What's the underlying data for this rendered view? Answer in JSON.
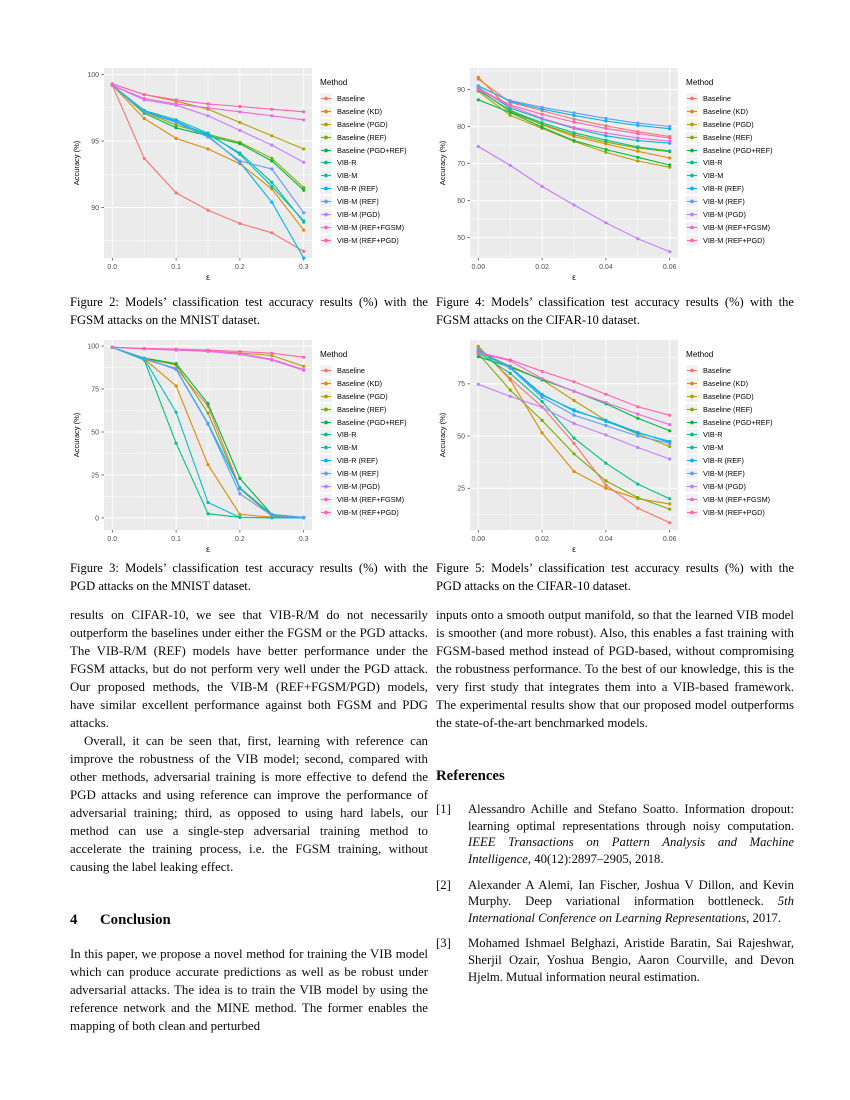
{
  "body": {
    "left": {
      "para1": "results on CIFAR-10, we see that VIB-R/M do not necessarily outperform the baselines under either the FGSM or the PGD attacks. The VIB-R/M (REF) models have better performance under the FGSM attacks, but do not perform very well under the PGD attack. Our proposed methods, the VIB-M (REF+FGSM/PGD) models, have similar excellent performance against both FGSM and PDG attacks.",
      "para2": "Overall, it can be seen that, first, learning with reference can improve the robustness of the VIB model; second, compared with other methods, adversarial training is more effective to defend the PGD attacks and using reference can improve the performance of adversarial training; third, as opposed to using hard labels, our method can use a single-step adversarial training method to accelerate the training process, i.e. the FGSM training, without causing the label leaking effect.",
      "section_number": "4",
      "section_title": "Conclusion",
      "para3": "In this paper, we propose a novel method for training the VIB model which can produce accurate predictions as well as be robust under adversarial attacks. The idea is to train the VIB model by using the reference network and the MINE method. The former enables the mapping of both clean and perturbed"
    },
    "right": {
      "para1": "inputs onto a smooth output manifold, so that the learned VIB model is smoother (and more robust). Also, this enables a fast training with FGSM-based method instead of PGD-based, without compromising the robustness performance. To the best of our knowledge, this is the very first study that integrates them into a VIB-based framework. The experimental results show that our proposed model outperforms the state-of-the-art benchmarked models.",
      "references_title": "References",
      "references": [
        {
          "number": "[1]",
          "parts": [
            {
              "text": "Alessandro Achille and Stefano Soatto. Information dropout: learning optimal representations through noisy computation. ",
              "italic": false
            },
            {
              "text": "IEEE Transactions on Pattern Analysis and Machine Intelligence",
              "italic": true
            },
            {
              "text": ", 40(12):2897–2905, 2018.",
              "italic": false
            }
          ]
        },
        {
          "number": "[2]",
          "parts": [
            {
              "text": "Alexander A Alemi, Ian Fischer, Joshua V Dillon, and Kevin Murphy. Deep variational information bottleneck. ",
              "italic": false
            },
            {
              "text": "5th International Conference on Learning Representations",
              "italic": true
            },
            {
              "text": ", 2017.",
              "italic": false
            }
          ]
        },
        {
          "number": "[3]",
          "parts": [
            {
              "text": "Mohamed Ishmael Belghazi, Aristide Baratin, Sai Rajeshwar, Sherjil Ozair, Yoshua Bengio, Aaron Courville, and Devon Hjelm. Mutual information neural estimation.",
              "italic": false
            }
          ]
        }
      ]
    }
  },
  "chart_data": [
    {
      "id": "figure-2",
      "type": "line",
      "caption": "Figure 2: Models’ classification test accuracy results (%) with the FGSM attacks on the MNIST dataset.",
      "xlabel": "ε",
      "ylabel": "Accuracy (%)",
      "legend_title": "Method",
      "x": [
        0.0,
        0.05,
        0.1,
        0.15,
        0.2,
        0.25,
        0.3
      ],
      "xlim": [
        -0.013,
        0.313
      ],
      "ylim": [
        86.2,
        100.5
      ],
      "xticks": [
        0.0,
        0.1,
        0.2,
        0.3
      ],
      "xtick_labels": [
        "0.0",
        "0.1",
        "0.2",
        "0.3"
      ],
      "x_minor": [
        0.05,
        0.15,
        0.25
      ],
      "yticks": [
        90,
        95,
        100
      ],
      "y_minor": [
        87.5,
        92.5,
        97.5
      ],
      "series": [
        {
          "name": "Baseline",
          "color": "#F8766D",
          "values": [
            99.2,
            93.7,
            91.1,
            89.8,
            88.8,
            88.1,
            86.7
          ]
        },
        {
          "name": "Baseline (KD)",
          "color": "#DE8C00",
          "values": [
            99.2,
            96.7,
            95.2,
            94.4,
            93.3,
            91.4,
            88.3
          ]
        },
        {
          "name": "Baseline (PGD)",
          "color": "#B79F00",
          "values": [
            99.3,
            98.5,
            98.0,
            97.4,
            96.4,
            95.4,
            94.4
          ]
        },
        {
          "name": "Baseline (REF)",
          "color": "#7CAE00",
          "values": [
            99.2,
            97.2,
            96.2,
            95.5,
            94.9,
            93.7,
            91.5
          ]
        },
        {
          "name": "Baseline (PGD+REF)",
          "color": "#00BA38",
          "values": [
            99.2,
            97.1,
            96.0,
            95.4,
            94.8,
            93.5,
            91.3
          ]
        },
        {
          "name": "VIB-R",
          "color": "#00C08B",
          "values": [
            99.2,
            97.3,
            96.4,
            95.5,
            94.1,
            91.9,
            88.9
          ]
        },
        {
          "name": "VIB-M",
          "color": "#00BFC4",
          "values": [
            99.2,
            97.3,
            96.6,
            95.6,
            94.0,
            91.6,
            89.0
          ]
        },
        {
          "name": "VIB-R (REF)",
          "color": "#00B4F0",
          "values": [
            99.2,
            97.2,
            96.5,
            95.4,
            93.4,
            90.4,
            86.2
          ]
        },
        {
          "name": "VIB-M (REF)",
          "color": "#619CFF",
          "values": [
            99.2,
            97.2,
            96.4,
            95.3,
            93.5,
            92.9,
            89.6
          ]
        },
        {
          "name": "VIB-M (PGD)",
          "color": "#C77CFF",
          "values": [
            99.2,
            98.1,
            97.7,
            96.9,
            95.8,
            94.7,
            93.4
          ]
        },
        {
          "name": "VIB-M (REF+FGSM)",
          "color": "#F564E3",
          "values": [
            99.2,
            98.2,
            97.8,
            97.5,
            97.2,
            96.9,
            96.6
          ]
        },
        {
          "name": "VIB-M (REF+PGD)",
          "color": "#FF64B0",
          "values": [
            99.3,
            98.5,
            98.1,
            97.8,
            97.6,
            97.4,
            97.2
          ]
        }
      ]
    },
    {
      "id": "figure-4",
      "type": "line",
      "caption": "Figure 4: Models’ classification test accuracy results (%) with the FGSM attacks on the CIFAR-10 dataset.",
      "xlabel": "ε",
      "ylabel": "Accuracy (%)",
      "legend_title": "Method",
      "x": [
        0.0,
        0.01,
        0.02,
        0.03,
        0.04,
        0.05,
        0.06
      ],
      "xlim": [
        -0.0026,
        0.0626
      ],
      "ylim": [
        44.5,
        95.8
      ],
      "xticks": [
        0.0,
        0.02,
        0.04,
        0.06
      ],
      "xtick_labels": [
        "0.00",
        "0.02",
        "0.04",
        "0.06"
      ],
      "x_minor": [
        0.01,
        0.03,
        0.05
      ],
      "yticks": [
        50,
        60,
        70,
        80,
        90
      ],
      "y_minor": [
        45,
        55,
        65,
        75,
        85,
        95
      ],
      "series": [
        {
          "name": "Baseline",
          "color": "#F8766D",
          "values": [
            92.8,
            86.5,
            84.3,
            82.0,
            80.2,
            78.6,
            77.3
          ]
        },
        {
          "name": "Baseline (KD)",
          "color": "#DE8C00",
          "values": [
            93.3,
            84.5,
            80.5,
            77.3,
            75.3,
            73.3,
            71.5
          ]
        },
        {
          "name": "Baseline (PGD)",
          "color": "#B79F00",
          "values": [
            89.5,
            83.0,
            79.5,
            76.0,
            73.0,
            70.7,
            69.0
          ]
        },
        {
          "name": "Baseline (REF)",
          "color": "#7CAE00",
          "values": [
            90.0,
            84.0,
            80.6,
            77.8,
            75.8,
            74.2,
            73.2
          ]
        },
        {
          "name": "Baseline (PGD+REF)",
          "color": "#00BA38",
          "values": [
            87.2,
            83.8,
            79.8,
            76.2,
            73.8,
            71.7,
            69.6
          ]
        },
        {
          "name": "VIB-R",
          "color": "#00C08B",
          "values": [
            89.8,
            84.3,
            81.0,
            78.3,
            76.3,
            74.5,
            73.4
          ]
        },
        {
          "name": "VIB-M",
          "color": "#00BFC4",
          "values": [
            90.5,
            85.0,
            82.0,
            79.5,
            77.5,
            76.2,
            75.5
          ]
        },
        {
          "name": "VIB-R (REF)",
          "color": "#00B4F0",
          "values": [
            91.0,
            86.8,
            84.7,
            83.0,
            81.5,
            80.3,
            79.4
          ]
        },
        {
          "name": "VIB-M (REF)",
          "color": "#619CFF",
          "values": [
            90.8,
            87.0,
            85.2,
            83.7,
            82.2,
            80.9,
            80.0
          ]
        },
        {
          "name": "VIB-M (PGD)",
          "color": "#C77CFF",
          "values": [
            74.6,
            69.5,
            63.8,
            58.8,
            54.0,
            49.7,
            46.2
          ]
        },
        {
          "name": "VIB-M (REF+FGSM)",
          "color": "#F564E3",
          "values": [
            90.0,
            85.5,
            82.2,
            79.7,
            78.2,
            76.9,
            76.0
          ]
        },
        {
          "name": "VIB-M (REF+PGD)",
          "color": "#FF64B0",
          "values": [
            90.2,
            85.8,
            83.3,
            81.2,
            79.5,
            78.1,
            76.9
          ]
        }
      ]
    },
    {
      "id": "figure-3",
      "type": "line",
      "caption": "Figure 3: Models’ classification test accuracy results (%) with the PGD attacks on the MNIST dataset.",
      "xlabel": "ε",
      "ylabel": "Accuracy (%)",
      "legend_title": "Method",
      "x": [
        0.0,
        0.05,
        0.1,
        0.15,
        0.2,
        0.25,
        0.3
      ],
      "xlim": [
        -0.013,
        0.313
      ],
      "ylim": [
        -7,
        103.5
      ],
      "xticks": [
        0.0,
        0.1,
        0.2,
        0.3
      ],
      "xtick_labels": [
        "0.0",
        "0.1",
        "0.2",
        "0.3"
      ],
      "x_minor": [
        0.05,
        0.15,
        0.25
      ],
      "yticks": [
        0,
        25,
        50,
        75,
        100
      ],
      "y_minor": [
        12.5,
        37.5,
        62.5,
        87.5
      ],
      "series": [
        {
          "name": "Baseline",
          "color": "#F8766D",
          "values": [
            99.2,
            92.3,
            87.0,
            65.0,
            17.5,
            1.5,
            0.2
          ]
        },
        {
          "name": "Baseline (KD)",
          "color": "#DE8C00",
          "values": [
            99.2,
            92.5,
            76.8,
            31.0,
            2.0,
            0.5,
            0.2
          ]
        },
        {
          "name": "Baseline (PGD)",
          "color": "#B79F00",
          "values": [
            99.3,
            98.4,
            97.8,
            97.0,
            96.0,
            94.5,
            88.2
          ]
        },
        {
          "name": "Baseline (REF)",
          "color": "#7CAE00",
          "values": [
            99.2,
            92.8,
            89.0,
            61.0,
            17.0,
            1.0,
            0.2
          ]
        },
        {
          "name": "Baseline (PGD+REF)",
          "color": "#00BA38",
          "values": [
            99.2,
            93.0,
            89.8,
            66.5,
            23.0,
            2.0,
            0.3
          ]
        },
        {
          "name": "VIB-R",
          "color": "#00C08B",
          "values": [
            99.2,
            92.0,
            43.5,
            2.5,
            0.3,
            0.1,
            0.1
          ]
        },
        {
          "name": "VIB-M",
          "color": "#00BFC4",
          "values": [
            99.2,
            92.5,
            61.5,
            9.0,
            0.3,
            0.1,
            0.1
          ]
        },
        {
          "name": "VIB-R (REF)",
          "color": "#00B4F0",
          "values": [
            99.2,
            93.0,
            86.5,
            55.0,
            17.5,
            2.0,
            0.3
          ]
        },
        {
          "name": "VIB-M (REF)",
          "color": "#619CFF",
          "values": [
            99.2,
            93.0,
            86.3,
            54.5,
            14.0,
            1.5,
            0.3
          ]
        },
        {
          "name": "VIB-M (PGD)",
          "color": "#C77CFF",
          "values": [
            99.3,
            98.3,
            97.6,
            96.8,
            95.2,
            91.8,
            85.8
          ]
        },
        {
          "name": "VIB-M (REF+FGSM)",
          "color": "#F564E3",
          "values": [
            99.3,
            98.4,
            97.7,
            97.0,
            95.6,
            92.3,
            86.2
          ]
        },
        {
          "name": "VIB-M (REF+PGD)",
          "color": "#FF64B0",
          "values": [
            99.3,
            98.6,
            98.2,
            97.6,
            96.8,
            95.8,
            93.5
          ]
        }
      ]
    },
    {
      "id": "figure-5",
      "type": "line",
      "caption": "Figure 5: Models’ classification test accuracy results (%) with the PGD attacks on the CIFAR-10 dataset.",
      "xlabel": "ε",
      "ylabel": "Accuracy (%)",
      "legend_title": "Method",
      "x": [
        0.0,
        0.01,
        0.02,
        0.03,
        0.04,
        0.05,
        0.06
      ],
      "xlim": [
        -0.0026,
        0.0626
      ],
      "ylim": [
        5,
        96
      ],
      "xticks": [
        0.0,
        0.02,
        0.04,
        0.06
      ],
      "xtick_labels": [
        "0.00",
        "0.02",
        "0.04",
        "0.06"
      ],
      "x_minor": [
        0.01,
        0.03,
        0.05
      ],
      "yticks": [
        25,
        50,
        75
      ],
      "y_minor": [
        12.5,
        37.5,
        62.5,
        87.5
      ],
      "series": [
        {
          "name": "Baseline",
          "color": "#F8766D",
          "values": [
            92.5,
            77.5,
            64.0,
            46.5,
            26.5,
            15.5,
            8.5
          ]
        },
        {
          "name": "Baseline (KD)",
          "color": "#DE8C00",
          "values": [
            93.0,
            77.0,
            51.5,
            33.0,
            25.0,
            20.0,
            17.5
          ]
        },
        {
          "name": "Baseline (PGD)",
          "color": "#B79F00",
          "values": [
            90.5,
            83.5,
            77.0,
            67.0,
            57.5,
            51.0,
            45.0
          ]
        },
        {
          "name": "Baseline (REF)",
          "color": "#7CAE00",
          "values": [
            89.5,
            72.0,
            57.5,
            41.5,
            28.5,
            20.5,
            15.0
          ]
        },
        {
          "name": "Baseline (PGD+REF)",
          "color": "#00BA38",
          "values": [
            88.0,
            83.0,
            77.0,
            71.5,
            65.5,
            58.5,
            52.5
          ]
        },
        {
          "name": "VIB-R",
          "color": "#00C08B",
          "values": [
            90.0,
            80.0,
            66.5,
            49.0,
            37.0,
            27.0,
            20.0
          ]
        },
        {
          "name": "VIB-M",
          "color": "#00BFC4",
          "values": [
            90.5,
            82.5,
            69.5,
            62.5,
            57.0,
            51.5,
            47.5
          ]
        },
        {
          "name": "VIB-R (REF)",
          "color": "#00B4F0",
          "values": [
            91.0,
            83.0,
            70.0,
            62.0,
            57.5,
            51.8,
            47.0
          ]
        },
        {
          "name": "VIB-M (REF)",
          "color": "#619CFF",
          "values": [
            91.5,
            82.5,
            68.5,
            60.0,
            55.0,
            50.0,
            46.5
          ]
        },
        {
          "name": "VIB-M (PGD)",
          "color": "#C77CFF",
          "values": [
            74.8,
            69.0,
            63.8,
            56.0,
            50.5,
            44.5,
            39.0
          ]
        },
        {
          "name": "VIB-M (REF+FGSM)",
          "color": "#F564E3",
          "values": [
            89.8,
            86.0,
            77.5,
            71.5,
            66.0,
            60.5,
            55.5
          ]
        },
        {
          "name": "VIB-M (REF+PGD)",
          "color": "#FF64B0",
          "values": [
            90.0,
            86.5,
            81.0,
            76.0,
            70.0,
            64.0,
            60.0
          ]
        }
      ]
    }
  ],
  "style": {
    "panel_bg": "#EBEBEB",
    "grid_color": "#FFFFFF",
    "tick_label_color": "#4D4D4D",
    "legend_key_bg": "#F2F2F2"
  }
}
